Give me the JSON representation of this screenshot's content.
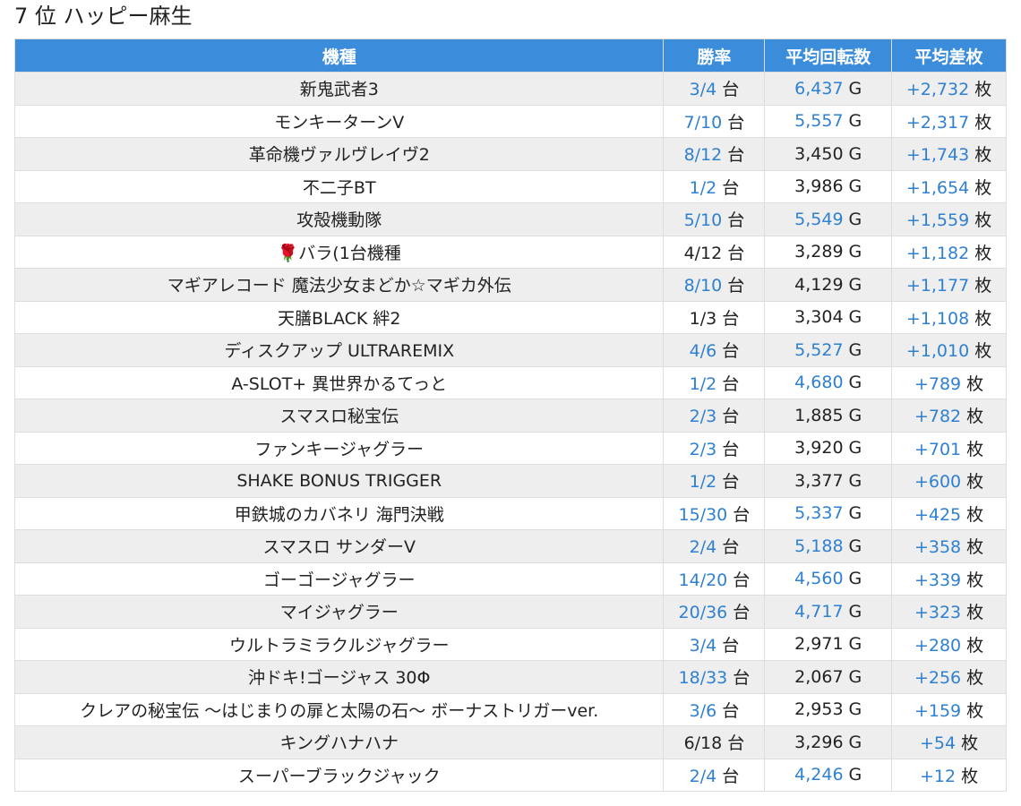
{
  "header": {
    "title": "7 位 ハッピー麻生"
  },
  "table": {
    "columns": [
      {
        "label": "機種"
      },
      {
        "label": "勝率",
        "unit": "台"
      },
      {
        "label": "平均回転数",
        "unit": "G"
      },
      {
        "label": "平均差枚",
        "unit": "枚"
      }
    ],
    "rows": [
      {
        "model": "新鬼武者3",
        "win": "3/4",
        "win_color": "#2f80d1",
        "games": "6,437",
        "games_color": "#2f80d1",
        "diff": "+2,732",
        "diff_color": "#2f80d1"
      },
      {
        "model": "モンキーターンV",
        "win": "7/10",
        "win_color": "#2f80d1",
        "games": "5,557",
        "games_color": "#2f80d1",
        "diff": "+2,317",
        "diff_color": "#2f80d1"
      },
      {
        "model": "革命機ヴァルヴレイヴ2",
        "win": "8/12",
        "win_color": "#2f80d1",
        "games": "3,450",
        "games_color": "#222222",
        "diff": "+1,743",
        "diff_color": "#2f80d1"
      },
      {
        "model": "不二子BT",
        "win": "1/2",
        "win_color": "#2f80d1",
        "games": "3,986",
        "games_color": "#222222",
        "diff": "+1,654",
        "diff_color": "#2f80d1"
      },
      {
        "model": "攻殻機動隊",
        "win": "5/10",
        "win_color": "#2f80d1",
        "games": "5,549",
        "games_color": "#2f80d1",
        "diff": "+1,559",
        "diff_color": "#2f80d1"
      },
      {
        "model": "🌹バラ(1台機種",
        "win": "4/12",
        "win_color": "#222222",
        "games": "3,289",
        "games_color": "#222222",
        "diff": "+1,182",
        "diff_color": "#2f80d1"
      },
      {
        "model": "マギアレコード 魔法少女まどか☆マギカ外伝",
        "win": "8/10",
        "win_color": "#2f80d1",
        "games": "4,129",
        "games_color": "#222222",
        "diff": "+1,177",
        "diff_color": "#2f80d1"
      },
      {
        "model": "天膳BLACK 絆2",
        "win": "1/3",
        "win_color": "#222222",
        "games": "3,304",
        "games_color": "#222222",
        "diff": "+1,108",
        "diff_color": "#2f80d1"
      },
      {
        "model": "ディスクアップ ULTRAREMIX",
        "win": "4/6",
        "win_color": "#2f80d1",
        "games": "5,527",
        "games_color": "#2f80d1",
        "diff": "+1,010",
        "diff_color": "#2f80d1"
      },
      {
        "model": "A-SLOT+ 異世界かるてっと",
        "win": "1/2",
        "win_color": "#2f80d1",
        "games": "4,680",
        "games_color": "#2f80d1",
        "diff": "+789",
        "diff_color": "#2f80d1"
      },
      {
        "model": "スマスロ秘宝伝",
        "win": "2/3",
        "win_color": "#2f80d1",
        "games": "1,885",
        "games_color": "#222222",
        "diff": "+782",
        "diff_color": "#2f80d1"
      },
      {
        "model": "ファンキージャグラー",
        "win": "2/3",
        "win_color": "#2f80d1",
        "games": "3,920",
        "games_color": "#222222",
        "diff": "+701",
        "diff_color": "#2f80d1"
      },
      {
        "model": "SHAKE BONUS TRIGGER",
        "win": "1/2",
        "win_color": "#2f80d1",
        "games": "3,377",
        "games_color": "#222222",
        "diff": "+600",
        "diff_color": "#2f80d1"
      },
      {
        "model": "甲鉄城のカバネリ 海門決戦",
        "win": "15/30",
        "win_color": "#2f80d1",
        "games": "5,337",
        "games_color": "#2f80d1",
        "diff": "+425",
        "diff_color": "#2f80d1"
      },
      {
        "model": "スマスロ サンダーV",
        "win": "2/4",
        "win_color": "#2f80d1",
        "games": "5,188",
        "games_color": "#2f80d1",
        "diff": "+358",
        "diff_color": "#2f80d1"
      },
      {
        "model": "ゴーゴージャグラー",
        "win": "14/20",
        "win_color": "#2f80d1",
        "games": "4,560",
        "games_color": "#2f80d1",
        "diff": "+339",
        "diff_color": "#2f80d1"
      },
      {
        "model": "マイジャグラー",
        "win": "20/36",
        "win_color": "#2f80d1",
        "games": "4,717",
        "games_color": "#2f80d1",
        "diff": "+323",
        "diff_color": "#2f80d1"
      },
      {
        "model": "ウルトラミラクルジャグラー",
        "win": "3/4",
        "win_color": "#2f80d1",
        "games": "2,971",
        "games_color": "#222222",
        "diff": "+280",
        "diff_color": "#2f80d1"
      },
      {
        "model": "沖ドキ!ゴージャス 30Φ",
        "win": "18/33",
        "win_color": "#2f80d1",
        "games": "2,067",
        "games_color": "#222222",
        "diff": "+256",
        "diff_color": "#2f80d1"
      },
      {
        "model": "クレアの秘宝伝 〜はじまりの扉と太陽の石〜 ボーナストリガーver.",
        "win": "3/6",
        "win_color": "#2f80d1",
        "games": "2,953",
        "games_color": "#222222",
        "diff": "+159",
        "diff_color": "#2f80d1"
      },
      {
        "model": "キングハナハナ",
        "win": "6/18",
        "win_color": "#222222",
        "games": "3,296",
        "games_color": "#222222",
        "diff": "+54",
        "diff_color": "#2f80d1"
      },
      {
        "model": "スーパーブラックジャック",
        "win": "2/4",
        "win_color": "#2f80d1",
        "games": "4,246",
        "games_color": "#2f80d1",
        "diff": "+12",
        "diff_color": "#2f80d1"
      }
    ]
  }
}
